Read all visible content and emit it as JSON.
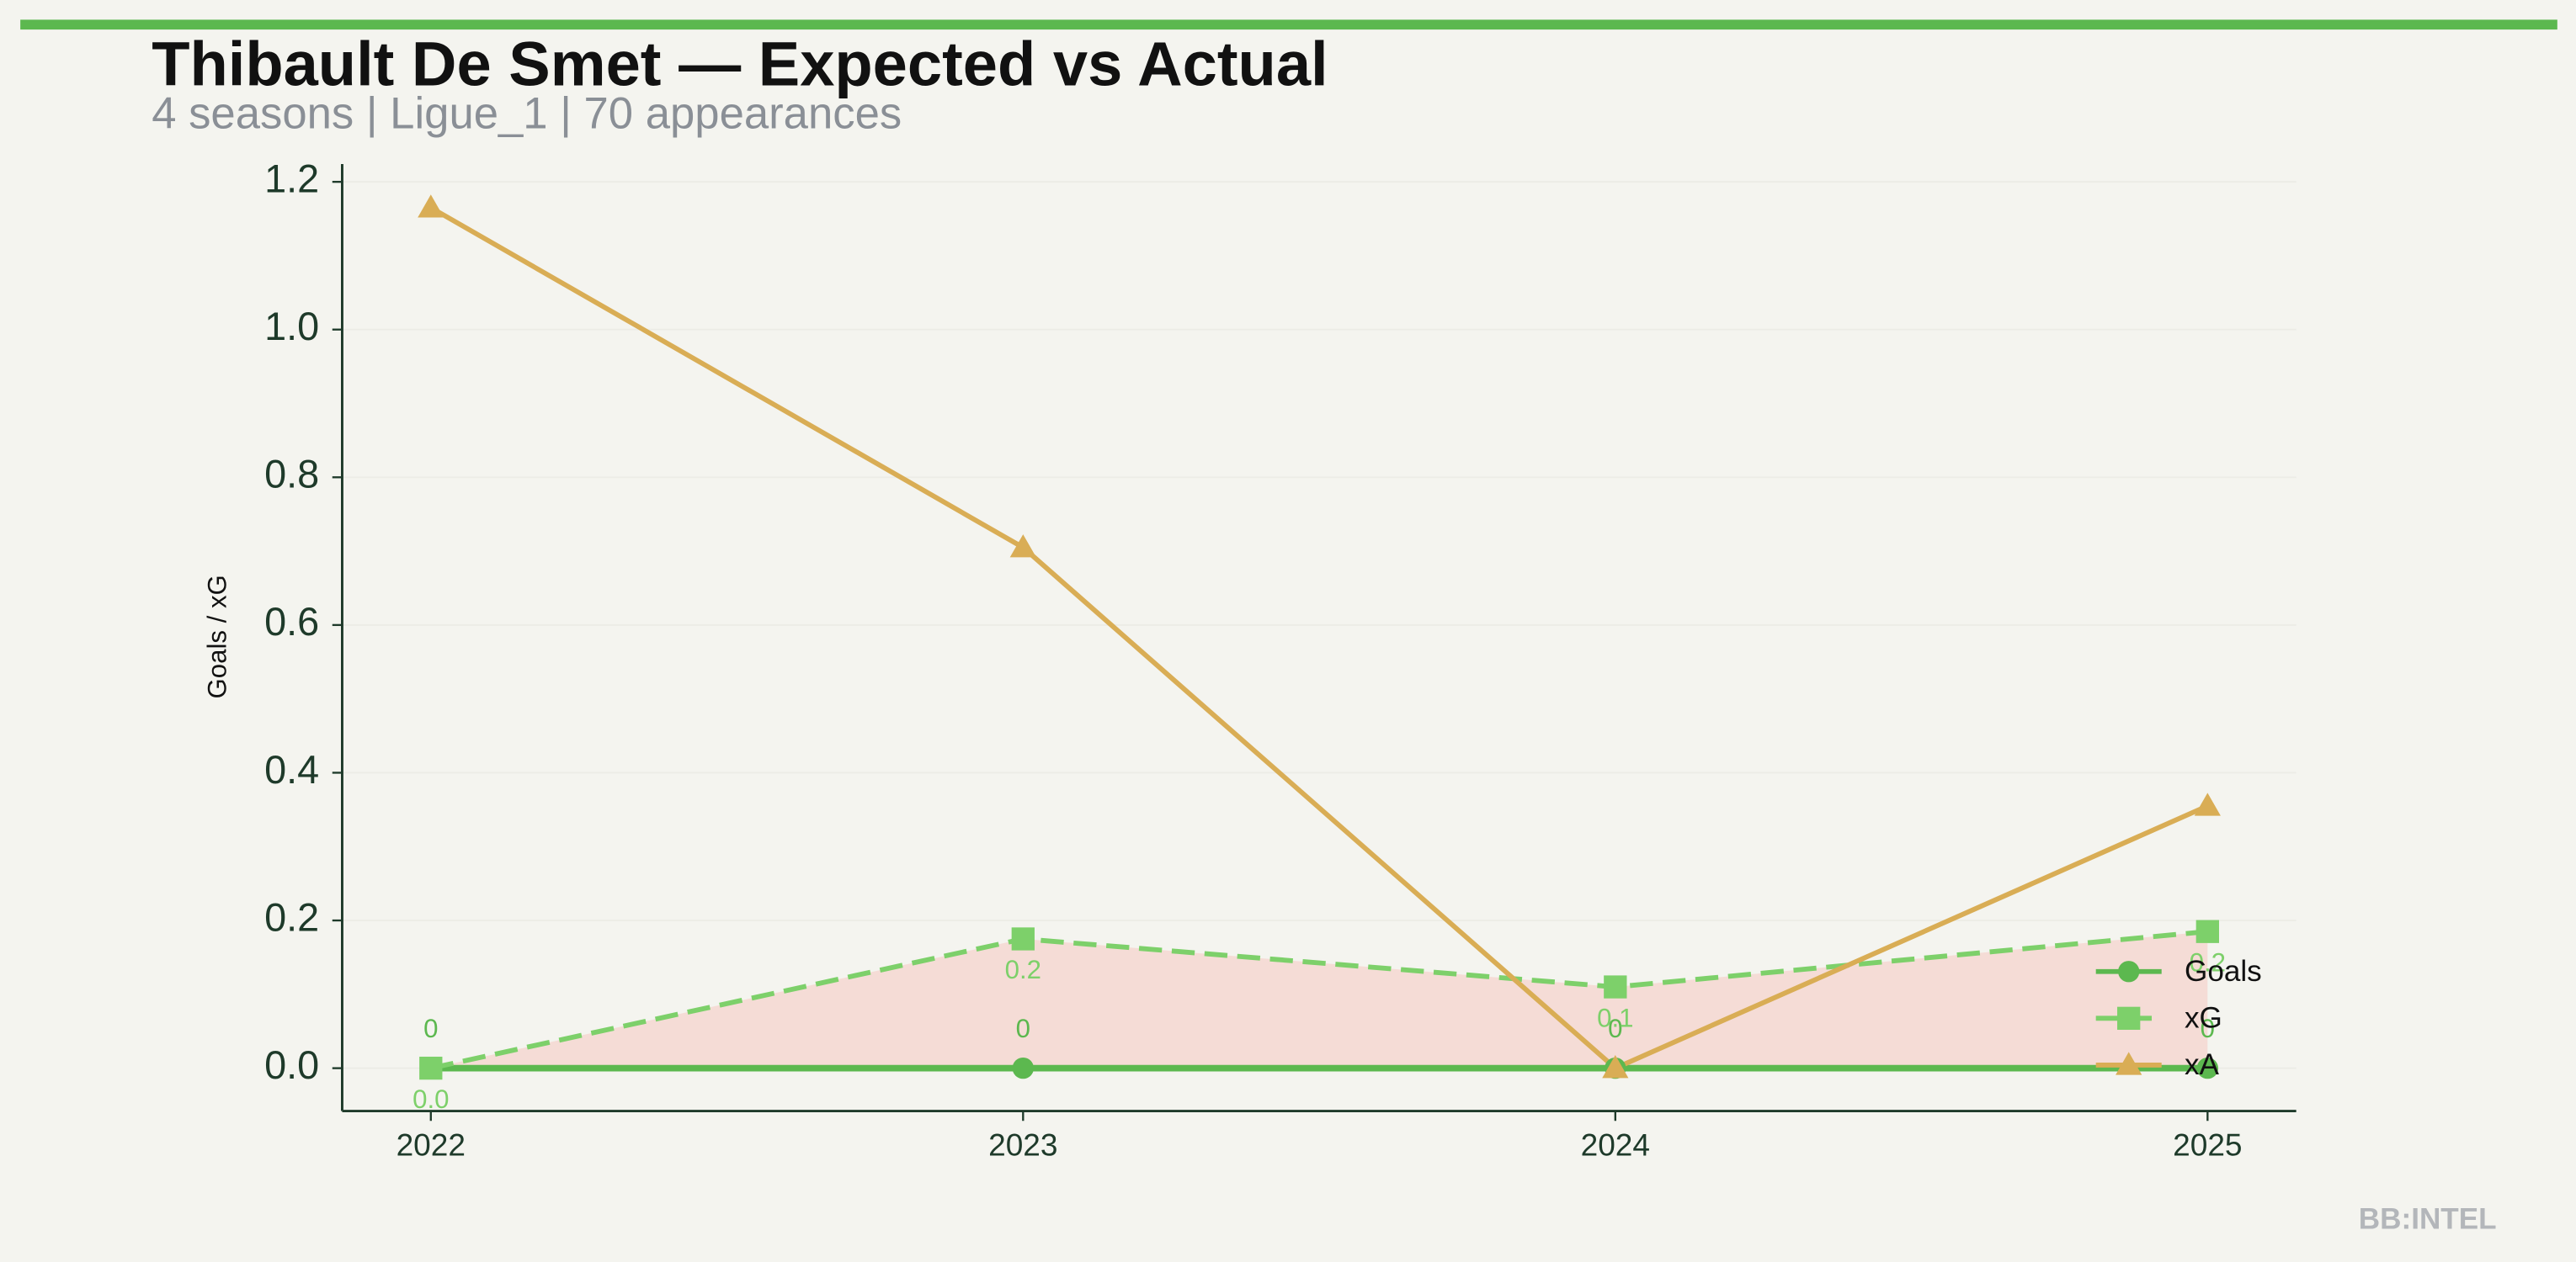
{
  "chart_data": {
    "type": "line",
    "title": "Thibault De Smet — Expected vs Actual",
    "subtitle": "4 seasons | Ligue_1 | 70 appearances",
    "y_label": "Goals / xG",
    "watermark": "BB:INTEL",
    "categories": [
      "2022",
      "2023",
      "2024",
      "2025"
    ],
    "series": [
      {
        "name": "Goals",
        "color": "#5cb84f",
        "marker": "circle",
        "dash": false,
        "values": [
          0,
          0,
          0,
          0
        ],
        "value_labels": [
          "0",
          "0",
          "0",
          "0"
        ]
      },
      {
        "name": "xG",
        "color": "#7dd06a",
        "marker": "square",
        "dash": true,
        "values": [
          0.0,
          0.175,
          0.11,
          0.185
        ],
        "value_labels": [
          "0.0",
          "0.2",
          "0.1",
          "0.2"
        ]
      },
      {
        "name": "xA",
        "color": "#d9ad55",
        "marker": "triangle",
        "dash": false,
        "values": [
          1.165,
          0.705,
          0.0,
          0.355
        ]
      }
    ],
    "shade_color": "#f5dcd6",
    "ylim": [
      -0.058,
      1.224
    ],
    "yticks": [
      {
        "value": 0,
        "label": "0.0"
      },
      0.2,
      0.4,
      0.6,
      0.8,
      {
        "value": 1,
        "label": "1.0"
      },
      1.2
    ],
    "grid": true,
    "legend": "lower right"
  }
}
